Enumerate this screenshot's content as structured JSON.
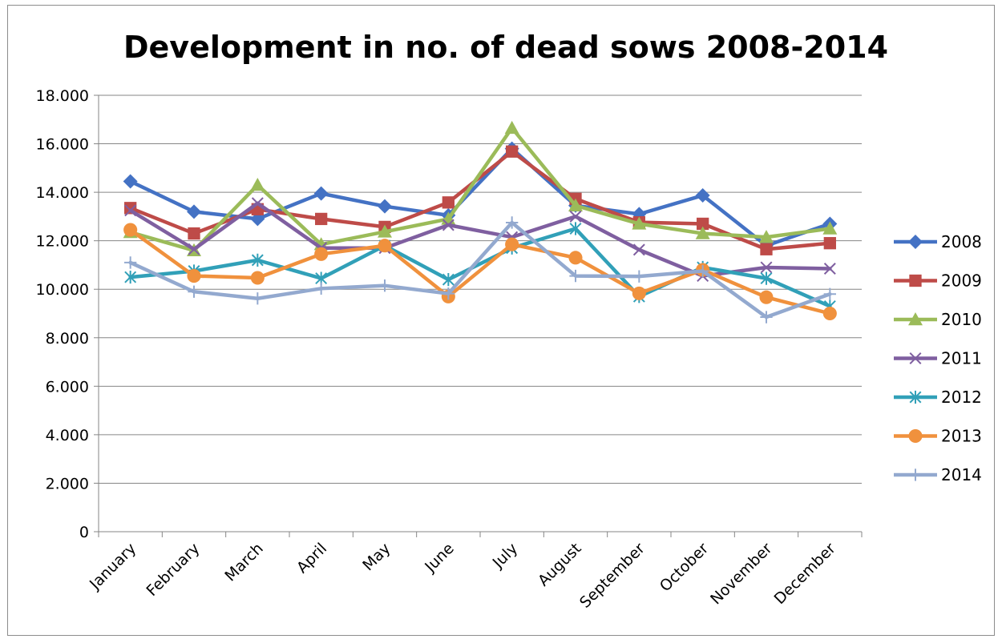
{
  "chart_data": {
    "type": "line",
    "title": "Development in no. of dead sows 2008-2014",
    "xlabel": "",
    "ylabel": "",
    "categories": [
      "January",
      "February",
      "March",
      "April",
      "May",
      "June",
      "July",
      "August",
      "September",
      "October",
      "November",
      "December"
    ],
    "ylim": [
      0,
      18000
    ],
    "yticks": [
      0,
      2000,
      4000,
      6000,
      8000,
      10000,
      12000,
      14000,
      16000,
      18000
    ],
    "ytick_labels": [
      "0",
      "2.000",
      "4.000",
      "6.000",
      "8.000",
      "10.000",
      "12.000",
      "14.000",
      "16.000",
      "18.000"
    ],
    "grid": "horizontal",
    "legend_position": "right",
    "series": [
      {
        "name": "2008",
        "color": "#4472c4",
        "marker": "diamond",
        "values": [
          14450,
          13200,
          12900,
          13950,
          13420,
          13050,
          15800,
          13450,
          13100,
          13870,
          11800,
          12700
        ]
      },
      {
        "name": "2009",
        "color": "#be4b48",
        "marker": "square",
        "values": [
          13350,
          12300,
          13300,
          12900,
          12570,
          13580,
          15680,
          13730,
          12760,
          12700,
          11650,
          11900
        ]
      },
      {
        "name": "2010",
        "color": "#9bbb59",
        "marker": "triangle",
        "values": [
          12350,
          11600,
          14300,
          11850,
          12370,
          12900,
          16650,
          13450,
          12700,
          12300,
          12150,
          12500
        ]
      },
      {
        "name": "2011",
        "color": "#7f5fa0",
        "marker": "x",
        "values": [
          13250,
          11650,
          13550,
          11700,
          11700,
          12650,
          12150,
          13000,
          11630,
          10550,
          10900,
          10850
        ]
      },
      {
        "name": "2012",
        "color": "#31a0b8",
        "marker": "star",
        "values": [
          10500,
          10750,
          11200,
          10450,
          11800,
          10400,
          11700,
          12500,
          9700,
          10900,
          10450,
          9300
        ]
      },
      {
        "name": "2013",
        "color": "#f0913d",
        "marker": "circle",
        "values": [
          12450,
          10550,
          10470,
          11450,
          11800,
          9700,
          11850,
          11300,
          9830,
          10800,
          9670,
          9000
        ]
      },
      {
        "name": "2014",
        "color": "#93a9cf",
        "marker": "plus",
        "values": [
          11100,
          9900,
          9620,
          10030,
          10150,
          9820,
          12750,
          10550,
          10530,
          10750,
          8850,
          9800
        ]
      }
    ]
  }
}
